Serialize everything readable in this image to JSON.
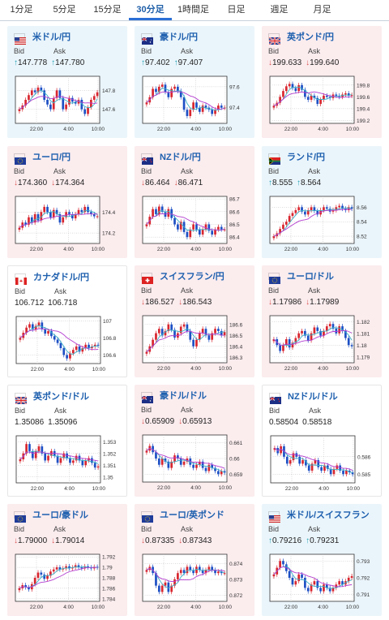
{
  "tabs": [
    {
      "label": "1分足",
      "active": false
    },
    {
      "label": "5分足",
      "active": false
    },
    {
      "label": "15分足",
      "active": false
    },
    {
      "label": "30分足",
      "active": true
    },
    {
      "label": "1時間足",
      "active": false
    },
    {
      "label": "日足",
      "active": false
    },
    {
      "label": "週足",
      "active": false
    },
    {
      "label": "月足",
      "active": false
    }
  ],
  "labels": {
    "bid": "Bid",
    "ask": "Ask"
  },
  "pairs": [
    {
      "name": "米ドル/円",
      "flag": "us",
      "trend": "up",
      "bid": "147.778",
      "ask": "147.780",
      "bid_dir": "up",
      "ask_dir": "up",
      "chart_data": {
        "type": "candlestick",
        "x_ticks": [
          "22:00",
          "4:00",
          "10:00"
        ],
        "y_ticks": [
          "147.8",
          "147.6"
        ],
        "ylim": [
          147.45,
          147.95
        ],
        "closes": [
          147.6,
          147.64,
          147.7,
          147.75,
          147.8,
          147.78,
          147.83,
          147.8,
          147.7,
          147.65,
          147.6,
          147.72,
          147.8,
          147.72,
          147.6,
          147.65,
          147.72,
          147.68,
          147.66,
          147.7,
          147.6,
          147.55,
          147.62,
          147.7,
          147.74,
          147.78
        ]
      }
    },
    {
      "name": "豪ドル/円",
      "flag": "au",
      "trend": "up",
      "bid": "97.402",
      "ask": "97.407",
      "bid_dir": "up",
      "ask_dir": "up",
      "chart_data": {
        "type": "candlestick",
        "x_ticks": [
          "22:00",
          "4:00",
          "10:00"
        ],
        "y_ticks": [
          "97.6",
          "97.4"
        ],
        "ylim": [
          97.25,
          97.7
        ],
        "closes": [
          97.45,
          97.5,
          97.58,
          97.55,
          97.6,
          97.62,
          97.55,
          97.5,
          97.58,
          97.6,
          97.56,
          97.5,
          97.38,
          97.32,
          97.38,
          97.45,
          97.4,
          97.36,
          97.42,
          97.4,
          97.38,
          97.34,
          97.38,
          97.42,
          97.4,
          97.4
        ]
      }
    },
    {
      "name": "英ポンド/円",
      "flag": "uk",
      "trend": "down",
      "bid": "199.633",
      "ask": "199.640",
      "bid_dir": "down",
      "ask_dir": "down",
      "chart_data": {
        "type": "candlestick",
        "x_ticks": [
          "22:00",
          "4:00",
          "10:00"
        ],
        "y_ticks": [
          "199.8",
          "199.6",
          "199.4",
          "199.2"
        ],
        "ylim": [
          199.15,
          199.95
        ],
        "closes": [
          199.45,
          199.5,
          199.6,
          199.7,
          199.78,
          199.82,
          199.75,
          199.7,
          199.8,
          199.72,
          199.6,
          199.55,
          199.62,
          199.58,
          199.48,
          199.55,
          199.62,
          199.6,
          199.58,
          199.64,
          199.62,
          199.6,
          199.64,
          199.66,
          199.62,
          199.63
        ]
      }
    },
    {
      "name": "ユーロ/円",
      "flag": "eu",
      "trend": "down",
      "bid": "174.360",
      "ask": "174.364",
      "bid_dir": "down",
      "ask_dir": "down",
      "chart_data": {
        "type": "candlestick",
        "x_ticks": [
          "22:00",
          "4:00",
          "10:00"
        ],
        "y_ticks": [
          "174.4",
          "174.2"
        ],
        "ylim": [
          174.1,
          174.55
        ],
        "closes": [
          174.25,
          174.3,
          174.28,
          174.35,
          174.3,
          174.38,
          174.32,
          174.4,
          174.45,
          174.4,
          174.35,
          174.42,
          174.38,
          174.3,
          174.35,
          174.4,
          174.38,
          174.34,
          174.38,
          174.42,
          174.4,
          174.45,
          174.4,
          174.38,
          174.36,
          174.36
        ]
      }
    },
    {
      "name": "NZドル/円",
      "flag": "nz",
      "trend": "down",
      "bid": "86.464",
      "ask": "86.471",
      "bid_dir": "down",
      "ask_dir": "down",
      "chart_data": {
        "type": "candlestick",
        "x_ticks": [
          "22:00",
          "4:00",
          "10:00"
        ],
        "y_ticks": [
          "86.7",
          "86.6",
          "86.5",
          "86.4"
        ],
        "ylim": [
          86.35,
          86.72
        ],
        "closes": [
          86.5,
          86.56,
          86.62,
          86.58,
          86.64,
          86.6,
          86.56,
          86.62,
          86.55,
          86.5,
          86.46,
          86.52,
          86.44,
          86.4,
          86.46,
          86.5,
          86.46,
          86.42,
          86.46,
          86.5,
          86.45,
          86.42,
          86.46,
          86.48,
          86.46,
          86.46
        ]
      }
    },
    {
      "name": "ランド/円",
      "flag": "za",
      "trend": "up",
      "bid": "8.555",
      "ask": "8.564",
      "bid_dir": "up",
      "ask_dir": "up",
      "chart_data": {
        "type": "candlestick",
        "x_ticks": [
          "22:00",
          "4:00",
          "10:00"
        ],
        "y_ticks": [
          "8.56",
          "8.54",
          "8.52"
        ],
        "ylim": [
          8.51,
          8.575
        ],
        "closes": [
          8.52,
          8.524,
          8.53,
          8.536,
          8.54,
          8.548,
          8.552,
          8.556,
          8.56,
          8.554,
          8.55,
          8.556,
          8.56,
          8.555,
          8.55,
          8.556,
          8.56,
          8.558,
          8.554,
          8.556,
          8.56,
          8.562,
          8.558,
          8.556,
          8.56,
          8.558
        ]
      }
    },
    {
      "name": "カナダドル/円",
      "flag": "ca",
      "trend": "flat",
      "bid": "106.712",
      "ask": "106.718",
      "bid_dir": "none",
      "ask_dir": "none",
      "chart_data": {
        "type": "candlestick",
        "x_ticks": [
          "22:00",
          "4:00",
          "10:00"
        ],
        "y_ticks": [
          "107",
          "106.8",
          "106.6"
        ],
        "ylim": [
          106.5,
          107.05
        ],
        "closes": [
          106.8,
          106.86,
          106.92,
          106.96,
          106.9,
          106.94,
          106.98,
          106.9,
          106.85,
          106.88,
          106.82,
          106.78,
          106.74,
          106.68,
          106.6,
          106.56,
          106.62,
          106.66,
          106.7,
          106.64,
          106.68,
          106.72,
          106.68,
          106.7,
          106.72,
          106.71
        ]
      }
    },
    {
      "name": "スイスフラン/円",
      "flag": "ch",
      "trend": "down",
      "bid": "186.527",
      "ask": "186.543",
      "bid_dir": "down",
      "ask_dir": "down",
      "chart_data": {
        "type": "candlestick",
        "x_ticks": [
          "22:00",
          "4:00",
          "10:00"
        ],
        "y_ticks": [
          "186.6",
          "186.5",
          "186.4",
          "186.3"
        ],
        "ylim": [
          186.25,
          186.68
        ],
        "closes": [
          186.35,
          186.4,
          186.46,
          186.52,
          186.56,
          186.5,
          186.54,
          186.6,
          186.55,
          186.48,
          186.52,
          186.58,
          186.6,
          186.54,
          186.46,
          186.4,
          186.46,
          186.52,
          186.56,
          186.5,
          186.46,
          186.52,
          186.56,
          186.54,
          186.5,
          186.53
        ]
      }
    },
    {
      "name": "ユーロ/ドル",
      "flag": "eu",
      "trend": "down",
      "bid": "1.17986",
      "ask": "1.17989",
      "bid_dir": "down",
      "ask_dir": "down",
      "chart_data": {
        "type": "candlestick",
        "x_ticks": [
          "22:00",
          "4:00",
          "10:00"
        ],
        "y_ticks": [
          "1.182",
          "1.181",
          "1.18",
          "1.179"
        ],
        "ylim": [
          1.1785,
          1.1825
        ],
        "closes": [
          1.1805,
          1.18,
          1.1795,
          1.18,
          1.1805,
          1.1798,
          1.1802,
          1.1806,
          1.181,
          1.1812,
          1.1808,
          1.1804,
          1.181,
          1.1815,
          1.1812,
          1.1808,
          1.1812,
          1.1816,
          1.1818,
          1.1814,
          1.181,
          1.1816,
          1.1812,
          1.1806,
          1.18,
          1.1799
        ]
      }
    },
    {
      "name": "英ポンド/ドル",
      "flag": "uk",
      "trend": "flat",
      "bid": "1.35086",
      "ask": "1.35096",
      "bid_dir": "none",
      "ask_dir": "none",
      "chart_data": {
        "type": "candlestick",
        "x_ticks": [
          "22:00",
          "4:00",
          "10:00"
        ],
        "y_ticks": [
          "1.353",
          "1.352",
          "1.351",
          "1.35"
        ],
        "ylim": [
          1.3495,
          1.3535
        ],
        "closes": [
          1.3515,
          1.352,
          1.3528,
          1.3522,
          1.3516,
          1.3522,
          1.3526,
          1.352,
          1.3514,
          1.3518,
          1.3522,
          1.3518,
          1.3512,
          1.3516,
          1.352,
          1.3516,
          1.3512,
          1.3514,
          1.3518,
          1.3514,
          1.351,
          1.3514,
          1.3516,
          1.3512,
          1.3508,
          1.3509
        ]
      }
    },
    {
      "name": "豪ドル/ドル",
      "flag": "au",
      "trend": "down",
      "bid": "0.65909",
      "ask": "0.65913",
      "bid_dir": "down",
      "ask_dir": "down",
      "chart_data": {
        "type": "candlestick",
        "x_ticks": [
          "22:00",
          "4:00",
          "10:00"
        ],
        "y_ticks": [
          "0.661",
          "0.66",
          "0.659"
        ],
        "ylim": [
          0.6585,
          0.6615
        ],
        "closes": [
          0.6605,
          0.6608,
          0.6604,
          0.66,
          0.6596,
          0.66,
          0.6598,
          0.6594,
          0.6598,
          0.6602,
          0.66,
          0.6596,
          0.6598,
          0.66,
          0.6596,
          0.6594,
          0.6596,
          0.6598,
          0.6594,
          0.6592,
          0.6596,
          0.6594,
          0.6592,
          0.659,
          0.6592,
          0.6591
        ]
      }
    },
    {
      "name": "NZドル/ドル",
      "flag": "nz",
      "trend": "flat",
      "bid": "0.58504",
      "ask": "0.58518",
      "bid_dir": "none",
      "ask_dir": "none",
      "chart_data": {
        "type": "candlestick",
        "x_ticks": [
          "22:00",
          "4:00",
          "10:00"
        ],
        "y_ticks": [
          "0.586",
          "0.585"
        ],
        "ylim": [
          0.5845,
          0.5872
        ],
        "closes": [
          0.5865,
          0.5862,
          0.5866,
          0.586,
          0.5856,
          0.5858,
          0.5862,
          0.586,
          0.5856,
          0.5858,
          0.5855,
          0.5852,
          0.5856,
          0.5858,
          0.5854,
          0.5852,
          0.5855,
          0.5853,
          0.585,
          0.5853,
          0.5855,
          0.5852,
          0.585,
          0.5852,
          0.5851,
          0.585
        ]
      }
    },
    {
      "name": "ユーロ/豪ドル",
      "flag": "eu",
      "trend": "down",
      "bid": "1.79000",
      "ask": "1.79014",
      "bid_dir": "down",
      "ask_dir": "down",
      "chart_data": {
        "type": "candlestick",
        "x_ticks": [
          "22:00",
          "4:00",
          "10:00"
        ],
        "y_ticks": [
          "1.792",
          "1.79",
          "1.788",
          "1.786",
          "1.784"
        ],
        "ylim": [
          1.7835,
          1.7925
        ],
        "closes": [
          1.786,
          1.7866,
          1.7862,
          1.7858,
          1.7868,
          1.788,
          1.789,
          1.7886,
          1.7878,
          1.7884,
          1.7892,
          1.7896,
          1.79,
          1.7896,
          1.7898,
          1.7902,
          1.7898,
          1.79,
          1.7904,
          1.79,
          1.7898,
          1.7902,
          1.79,
          1.7898,
          1.7901,
          1.79
        ]
      }
    },
    {
      "name": "ユーロ/英ポンド",
      "flag": "eu",
      "trend": "down",
      "bid": "0.87335",
      "ask": "0.87343",
      "bid_dir": "down",
      "ask_dir": "down",
      "chart_data": {
        "type": "candlestick",
        "x_ticks": [
          "22:00",
          "4:00",
          "10:00"
        ],
        "y_ticks": [
          "0.874",
          "0.873",
          "0.872"
        ],
        "ylim": [
          0.8716,
          0.8746
        ],
        "closes": [
          0.8736,
          0.8738,
          0.8734,
          0.8726,
          0.8722,
          0.8726,
          0.8728,
          0.8722,
          0.8726,
          0.873,
          0.8734,
          0.8736,
          0.8734,
          0.8738,
          0.8736,
          0.8734,
          0.8738,
          0.8736,
          0.8734,
          0.8736,
          0.8738,
          0.8736,
          0.8734,
          0.8735,
          0.8734,
          0.8734
        ]
      }
    },
    {
      "name": "米ドル/スイスフラン",
      "flag": "us",
      "trend": "up",
      "bid": "0.79216",
      "ask": "0.79231",
      "bid_dir": "up",
      "ask_dir": "up",
      "chart_data": {
        "type": "candlestick",
        "x_ticks": [
          "22:00",
          "4:00",
          "10:00"
        ],
        "y_ticks": [
          "0.793",
          "0.792",
          "0.791"
        ],
        "ylim": [
          0.7906,
          0.7934
        ],
        "closes": [
          0.7922,
          0.7926,
          0.793,
          0.7928,
          0.7924,
          0.792,
          0.7916,
          0.7918,
          0.7922,
          0.792,
          0.7914,
          0.7912,
          0.7916,
          0.7918,
          0.7914,
          0.7912,
          0.7916,
          0.7914,
          0.7912,
          0.7914,
          0.7916,
          0.7918,
          0.7916,
          0.7918,
          0.792,
          0.7921
        ]
      }
    }
  ],
  "colors": {
    "up_arrow": "#1e9fb0",
    "down_arrow": "#d9534f",
    "candle_up": "#d8262f",
    "candle_down": "#1d4fc4",
    "ma_fast": "#3ab0c6",
    "ma_slow": "#b33ccf",
    "link": "#1d5fae"
  }
}
